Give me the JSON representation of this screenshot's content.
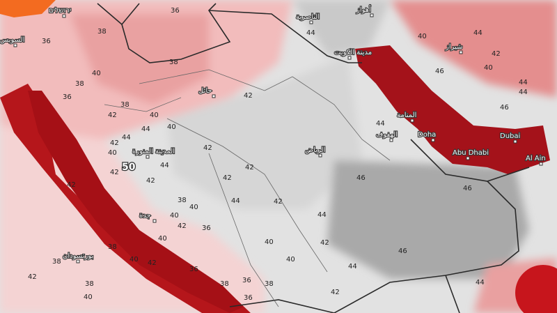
{
  "map": {
    "type": "temperature forecast map",
    "colors": {
      "sea_hot": "#a8141a",
      "land_hot": "#f3b8b8",
      "land_mid": "#f7dcdc",
      "land_gray": "#cfcfcf",
      "land_dark_gray": "#a9a9a9",
      "border": "#2a2a2a",
      "highlight": "#f36b20"
    },
    "cities": [
      "ירושלים",
      "السويس",
      "حائل",
      "المدينة المنورة",
      "الرياض",
      "جدة",
      "بورتسودان",
      "مدينة الكويت",
      "الناصرية",
      "أهواز",
      "شيراز",
      "المنامة",
      "الهفوف",
      "Doha",
      "Dubai",
      "Abu Dhabi",
      "Al Ain"
    ],
    "max_label": "50",
    "isotherm_labels": [
      "36",
      "38",
      "36",
      "40",
      "38",
      "38",
      "36",
      "38",
      "40",
      "42",
      "40",
      "42",
      "44",
      "42",
      "44",
      "40",
      "44",
      "42",
      "42",
      "42",
      "42",
      "42",
      "42",
      "40",
      "44",
      "42",
      "44",
      "46",
      "46",
      "46",
      "44",
      "44",
      "42",
      "40",
      "40",
      "38",
      "42",
      "40",
      "40",
      "38",
      "36",
      "38",
      "42",
      "40",
      "42",
      "38",
      "36",
      "36",
      "40",
      "42",
      "44",
      "44",
      "40",
      "40",
      "42",
      "46",
      "46",
      "44",
      "44",
      "36",
      "38",
      "38",
      "44"
    ]
  }
}
